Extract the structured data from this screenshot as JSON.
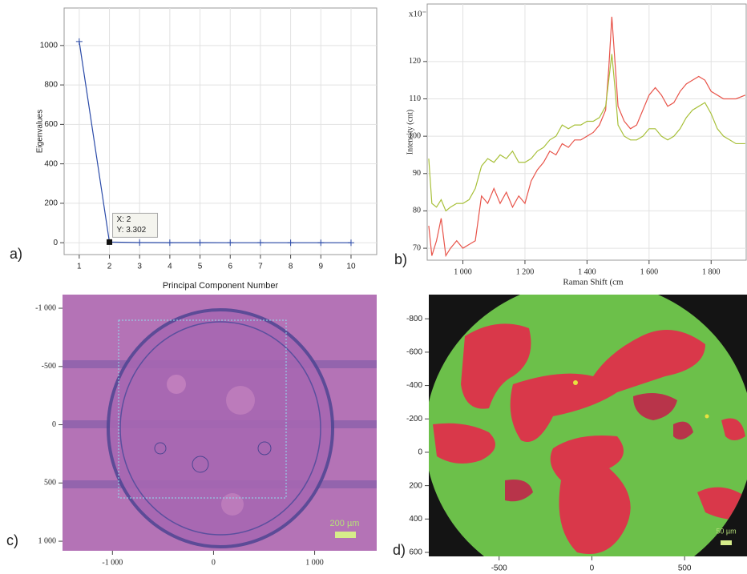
{
  "chart_data": [
    {
      "type": "line",
      "panel_label": "a)",
      "y_label": "Eigenvalues",
      "x_label": "Principal Component Number",
      "x": [
        1,
        2,
        3,
        4,
        5,
        6,
        7,
        8,
        9,
        10
      ],
      "values": [
        1020,
        3.302,
        0.9,
        0.5,
        0.3,
        0.2,
        0.15,
        0.1,
        0.08,
        0.05
      ],
      "color": "#2a4aa8",
      "xlim": [
        0.5,
        10.85
      ],
      "xticks": [
        1,
        2,
        3,
        4,
        5,
        6,
        7,
        8,
        9,
        10
      ],
      "ylim": [
        -60,
        1190
      ],
      "yticks": [
        0,
        200,
        400,
        600,
        800,
        1000
      ],
      "grid": true,
      "tooltip": [
        "X: 2",
        "Y: 3.302"
      ]
    },
    {
      "type": "line",
      "panel_label": "b)",
      "y_label": "Intensity (cnt)",
      "x_label": "Raman Shift (cm",
      "y_multiplier": "x10⁻³",
      "x": [
        890,
        900,
        915,
        930,
        945,
        960,
        980,
        1000,
        1020,
        1040,
        1060,
        1080,
        1100,
        1120,
        1140,
        1160,
        1180,
        1200,
        1220,
        1240,
        1260,
        1280,
        1300,
        1320,
        1340,
        1360,
        1380,
        1400,
        1420,
        1440,
        1460,
        1470,
        1480,
        1490,
        1500,
        1520,
        1540,
        1560,
        1580,
        1600,
        1620,
        1640,
        1660,
        1680,
        1700,
        1720,
        1740,
        1760,
        1780,
        1800,
        1820,
        1840,
        1860,
        1880,
        1910
      ],
      "series": [
        {
          "color": "#e8544a",
          "values": [
            76,
            68,
            72,
            78,
            68,
            70,
            72,
            70,
            71,
            72,
            84,
            82,
            86,
            82,
            85,
            81,
            84,
            82,
            88,
            91,
            93,
            96,
            95,
            98,
            97,
            99,
            99,
            100,
            101,
            103,
            107,
            118,
            132,
            120,
            108,
            104,
            102,
            103,
            107,
            111,
            113,
            111,
            108,
            109,
            112,
            114,
            115,
            116,
            115,
            112,
            111,
            110,
            110,
            110,
            111
          ]
        },
        {
          "color": "#a8c03a",
          "values": [
            94,
            82,
            81,
            83,
            80,
            81,
            82,
            82,
            83,
            86,
            92,
            94,
            93,
            95,
            94,
            96,
            93,
            93,
            94,
            96,
            97,
            99,
            100,
            103,
            102,
            103,
            103,
            104,
            104,
            105,
            108,
            115,
            122,
            113,
            103,
            100,
            99,
            99,
            100,
            102,
            102,
            100,
            99,
            100,
            102,
            105,
            107,
            108,
            109,
            106,
            102,
            100,
            99,
            98,
            98
          ]
        }
      ],
      "xlim": [
        885,
        1913
      ],
      "xticks": [
        {
          "value": 1000,
          "label": "1 000"
        },
        {
          "value": 1200,
          "label": "1 200"
        },
        {
          "value": 1400,
          "label": "1 400"
        },
        {
          "value": 1600,
          "label": "1 600"
        },
        {
          "value": 1800,
          "label": "1 800"
        }
      ],
      "ylim": [
        66.8,
        135.4
      ],
      "yticks": [
        70,
        80,
        90,
        100,
        110,
        120
      ],
      "grid": true
    },
    {
      "type": "image",
      "panel_label": "c)",
      "scale_bar": "200 µm",
      "xlim": [
        -1494,
        1614
      ],
      "xticks": [
        {
          "value": -1000,
          "label": "-1 000"
        },
        0,
        {
          "value": 1000,
          "label": "1 000"
        }
      ],
      "ylim": [
        -1117,
        1082
      ],
      "yticks": [
        {
          "value": -1000,
          "label": "-1 000"
        },
        -500,
        0,
        500,
        {
          "value": 1000,
          "label": "1 000"
        }
      ],
      "y_inverted": true
    },
    {
      "type": "image",
      "panel_label": "d)",
      "scale_bar": "50 µm",
      "xlim": [
        -879,
        832
      ],
      "xticks": [
        -500,
        0,
        500
      ],
      "ylim": [
        -945,
        624
      ],
      "yticks": [
        -800,
        -600,
        -400,
        -200,
        0,
        200,
        400,
        600
      ],
      "y_inverted": true
    }
  ]
}
